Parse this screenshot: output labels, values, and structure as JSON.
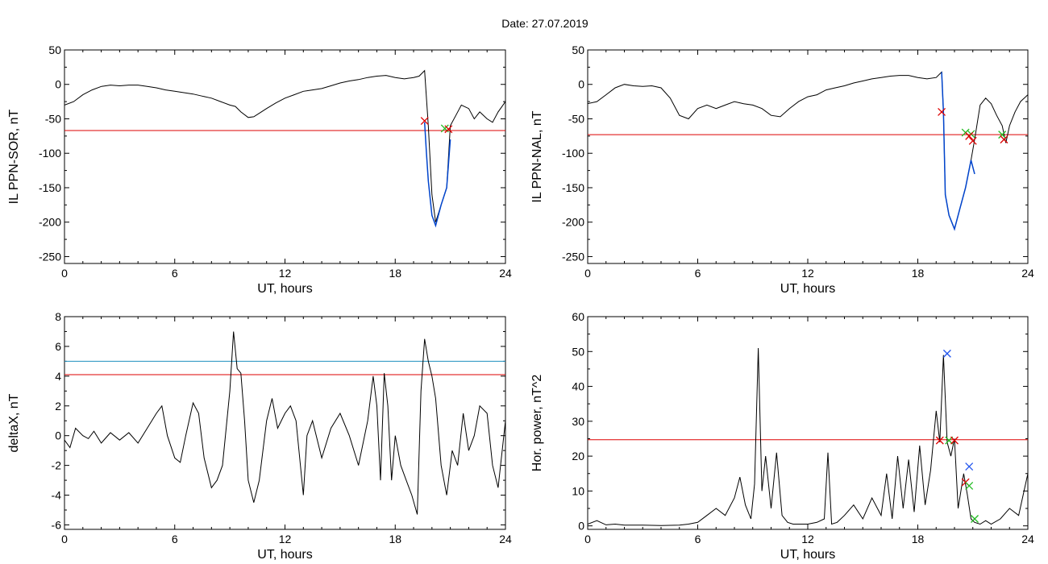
{
  "figure": {
    "title": "Date:  27.07.2019"
  },
  "colors": {
    "line": "#000000",
    "threshold": "#dd0000",
    "threshold2": "#1f8fbf",
    "highlight": "#0044cc",
    "marker_red": "#dd0000",
    "marker_green": "#22bb22",
    "marker_blue": "#2255ee"
  },
  "chart_data": [
    {
      "type": "line",
      "xlabel": "UT, hours",
      "ylabel": "IL PPN-SOR, nT",
      "xlim": [
        0,
        24
      ],
      "ylim": [
        -260,
        50
      ],
      "xticks": [
        0,
        6,
        12,
        18,
        24
      ],
      "yticks": [
        50,
        0,
        -50,
        -100,
        -150,
        -200,
        -250
      ],
      "series": [
        {
          "style": "main",
          "x": [
            0,
            0.5,
            1,
            1.5,
            2,
            2.5,
            3,
            3.5,
            4,
            4.5,
            5,
            5.5,
            6,
            6.5,
            7,
            7.5,
            8,
            8.5,
            9,
            9.3,
            9.6,
            10,
            10.3,
            10.6,
            11,
            11.5,
            12,
            12.5,
            13,
            13.5,
            14,
            14.5,
            15,
            15.5,
            16,
            16.5,
            17,
            17.5,
            18,
            18.5,
            19,
            19.3,
            19.6,
            19.7,
            19.8,
            20.0,
            20.2,
            20.5,
            20.8,
            21.0,
            21.3,
            21.6,
            22,
            22.3,
            22.6,
            23,
            23.3,
            23.6,
            24
          ],
          "y": [
            -30,
            -25,
            -15,
            -8,
            -3,
            -1,
            -2,
            -1,
            -1,
            -3,
            -5,
            -8,
            -10,
            -12,
            -14,
            -17,
            -20,
            -25,
            -30,
            -32,
            -40,
            -48,
            -47,
            -42,
            -35,
            -27,
            -20,
            -15,
            -10,
            -8,
            -6,
            -2,
            2,
            5,
            7,
            10,
            12,
            13,
            10,
            8,
            10,
            12,
            20,
            -20,
            -60,
            -160,
            -200,
            -175,
            -150,
            -60,
            -45,
            -30,
            -35,
            -50,
            -40,
            -50,
            -55,
            -40,
            -25
          ]
        },
        {
          "style": "highlight",
          "x": [
            19.6,
            19.7,
            19.8,
            20.0,
            20.2,
            20.5,
            20.8,
            21.0
          ],
          "y": [
            -55,
            -100,
            -140,
            -190,
            -205,
            -175,
            -150,
            -80
          ]
        }
      ],
      "hlines": [
        {
          "y": -67,
          "style": "threshold"
        }
      ],
      "markers": [
        {
          "x": 19.6,
          "y": -53,
          "style": "marker_red"
        },
        {
          "x": 20.7,
          "y": -64,
          "style": "marker_green"
        },
        {
          "x": 20.9,
          "y": -65,
          "style": "marker_red"
        }
      ]
    },
    {
      "type": "line",
      "xlabel": "UT, hours",
      "ylabel": "IL PPN-NAL, nT",
      "xlim": [
        0,
        24
      ],
      "ylim": [
        -260,
        50
      ],
      "xticks": [
        0,
        6,
        12,
        18,
        24
      ],
      "yticks": [
        50,
        0,
        -50,
        -100,
        -150,
        -200,
        -250
      ],
      "series": [
        {
          "style": "main",
          "x": [
            0,
            0.5,
            1,
            1.5,
            2,
            2.5,
            3,
            3.5,
            4,
            4.5,
            5,
            5.5,
            6,
            6.5,
            7,
            7.5,
            8,
            8.5,
            9,
            9.5,
            10,
            10.5,
            11,
            11.5,
            12,
            12.5,
            13,
            13.5,
            14,
            14.5,
            15,
            15.5,
            16,
            16.5,
            17,
            17.5,
            18,
            18.5,
            19,
            19.3,
            19.4,
            19.5,
            19.7,
            20.0,
            20.3,
            20.6,
            20.9,
            21.1,
            21.4,
            21.7,
            22,
            22.3,
            22.6,
            22.8,
            23,
            23.3,
            23.6,
            24
          ],
          "y": [
            -28,
            -25,
            -15,
            -5,
            0,
            -2,
            -3,
            -2,
            -5,
            -20,
            -45,
            -50,
            -35,
            -30,
            -35,
            -30,
            -25,
            -28,
            -30,
            -35,
            -45,
            -47,
            -35,
            -25,
            -18,
            -15,
            -8,
            -5,
            -2,
            2,
            5,
            8,
            10,
            12,
            13,
            13,
            10,
            8,
            10,
            18,
            -40,
            -160,
            -190,
            -210,
            -180,
            -150,
            -110,
            -80,
            -30,
            -20,
            -28,
            -45,
            -60,
            -85,
            -60,
            -40,
            -25,
            -15
          ]
        },
        {
          "style": "highlight",
          "x": [
            19.3,
            19.4,
            19.5,
            19.7,
            20.0,
            20.3,
            20.6,
            20.9,
            21.1
          ],
          "y": [
            18,
            -40,
            -160,
            -190,
            -210,
            -180,
            -150,
            -110,
            -130
          ]
        }
      ],
      "hlines": [
        {
          "y": -73,
          "style": "threshold"
        }
      ],
      "markers": [
        {
          "x": 19.3,
          "y": -40,
          "style": "marker_red"
        },
        {
          "x": 20.6,
          "y": -70,
          "style": "marker_green"
        },
        {
          "x": 20.9,
          "y": -72,
          "style": "marker_green"
        },
        {
          "x": 20.8,
          "y": -75,
          "style": "marker_red"
        },
        {
          "x": 21.0,
          "y": -82,
          "style": "marker_red"
        },
        {
          "x": 22.6,
          "y": -73,
          "style": "marker_green"
        },
        {
          "x": 22.7,
          "y": -80,
          "style": "marker_red"
        }
      ]
    },
    {
      "type": "line",
      "xlabel": "UT, hours",
      "ylabel": "deltaX, nT",
      "xlim": [
        0,
        24
      ],
      "ylim": [
        -6.3,
        8
      ],
      "xticks": [
        0,
        6,
        12,
        18,
        24
      ],
      "yticks": [
        8,
        6,
        4,
        2,
        0,
        -2,
        -4,
        -6
      ],
      "series": [
        {
          "style": "main",
          "x": [
            0,
            0.3,
            0.6,
            1,
            1.3,
            1.6,
            2,
            2.5,
            3,
            3.5,
            4,
            4.5,
            5,
            5.3,
            5.6,
            6,
            6.3,
            6.6,
            7,
            7.3,
            7.6,
            8,
            8.3,
            8.6,
            9.0,
            9.2,
            9.4,
            9.6,
            9.8,
            10.0,
            10.3,
            10.6,
            11,
            11.3,
            11.6,
            12,
            12.3,
            12.6,
            13.0,
            13.2,
            13.5,
            14,
            14.5,
            15,
            15.5,
            16,
            16.5,
            16.8,
            17.0,
            17.2,
            17.4,
            17.6,
            17.8,
            18.0,
            18.3,
            18.6,
            18.9,
            19.2,
            19.4,
            19.6,
            19.8,
            20.0,
            20.2,
            20.5,
            20.8,
            21.1,
            21.4,
            21.7,
            22,
            22.3,
            22.6,
            23,
            23.3,
            23.6,
            24
          ],
          "y": [
            -0.3,
            -0.8,
            0.5,
            0,
            -0.2,
            0.3,
            -0.5,
            0.2,
            -0.3,
            0.2,
            -0.5,
            0.5,
            1.5,
            2.0,
            0,
            -1.5,
            -1.8,
            0,
            2.2,
            1.5,
            -1.5,
            -3.5,
            -3.0,
            -2.0,
            3.0,
            7.0,
            4.5,
            4.2,
            1.0,
            -3.0,
            -4.5,
            -3.0,
            1.0,
            2.5,
            0.5,
            1.5,
            2.0,
            1.0,
            -4.0,
            0,
            1.0,
            -1.5,
            0.5,
            1.5,
            0,
            -2.0,
            1.0,
            4.0,
            2.0,
            -3.0,
            4.2,
            2.0,
            -3.0,
            0,
            -2.0,
            -3.0,
            -4.0,
            -5.3,
            3.0,
            6.5,
            5.0,
            4.0,
            2.5,
            -2.0,
            -4.0,
            -1.0,
            -2.0,
            1.5,
            -1.0,
            0,
            2.0,
            1.5,
            -2.0,
            -3.5,
            1.0
          ]
        }
      ],
      "hlines": [
        {
          "y": 4.1,
          "style": "threshold"
        },
        {
          "y": 5.0,
          "style": "threshold2"
        }
      ],
      "markers": []
    },
    {
      "type": "line",
      "xlabel": "UT, hours",
      "ylabel": "Hor. power, nT^2",
      "xlim": [
        0,
        24
      ],
      "ylim": [
        -1,
        60
      ],
      "xticks": [
        0,
        6,
        12,
        18,
        24
      ],
      "yticks": [
        60,
        50,
        40,
        30,
        20,
        10,
        0
      ],
      "series": [
        {
          "style": "main",
          "x": [
            0,
            0.5,
            1,
            1.5,
            2,
            3,
            4,
            5,
            5.5,
            6,
            6.5,
            7,
            7.5,
            8,
            8.3,
            8.6,
            8.9,
            9.1,
            9.3,
            9.5,
            9.7,
            10.0,
            10.3,
            10.6,
            10.9,
            11.2,
            11.5,
            12,
            12.5,
            12.9,
            13.1,
            13.3,
            13.6,
            14,
            14.5,
            15,
            15.5,
            16,
            16.3,
            16.6,
            16.9,
            17.2,
            17.5,
            17.8,
            18.1,
            18.4,
            18.7,
            19.0,
            19.2,
            19.4,
            19.6,
            19.8,
            20.0,
            20.2,
            20.5,
            20.7,
            20.9,
            21.1,
            21.4,
            21.7,
            22,
            22.5,
            23,
            23.5,
            24
          ],
          "y": [
            0.5,
            1.5,
            0.3,
            0.5,
            0.2,
            0.2,
            0.1,
            0.2,
            0.5,
            1.0,
            3.0,
            5.0,
            3.0,
            8.0,
            14.0,
            6.0,
            2.0,
            12.0,
            51.0,
            10.0,
            20.0,
            5.0,
            21.0,
            3.0,
            1.0,
            0.5,
            0.5,
            0.5,
            1.0,
            2.0,
            21.0,
            0.5,
            1.0,
            3.0,
            6.0,
            2.0,
            8.0,
            3.0,
            15.0,
            2.0,
            20.0,
            5.0,
            19.0,
            4.0,
            23.0,
            6.0,
            16.0,
            33.0,
            24.0,
            49.0,
            24.0,
            20.0,
            25.0,
            5.0,
            15.0,
            9.0,
            2.0,
            1.0,
            0.5,
            1.5,
            0.5,
            2.0,
            5.0,
            3.0,
            15.0
          ]
        }
      ],
      "hlines": [
        {
          "y": 24.7,
          "style": "threshold"
        }
      ],
      "markers": [
        {
          "x": 19.6,
          "y": 49.4,
          "style": "marker_blue"
        },
        {
          "x": 19.2,
          "y": 24.5,
          "style": "marker_red"
        },
        {
          "x": 19.7,
          "y": 24.5,
          "style": "marker_green"
        },
        {
          "x": 20.0,
          "y": 24.5,
          "style": "marker_red"
        },
        {
          "x": 20.8,
          "y": 17.0,
          "style": "marker_blue"
        },
        {
          "x": 20.6,
          "y": 12.5,
          "style": "marker_red"
        },
        {
          "x": 20.8,
          "y": 11.5,
          "style": "marker_green"
        },
        {
          "x": 21.1,
          "y": 2.0,
          "style": "marker_green"
        }
      ]
    }
  ]
}
